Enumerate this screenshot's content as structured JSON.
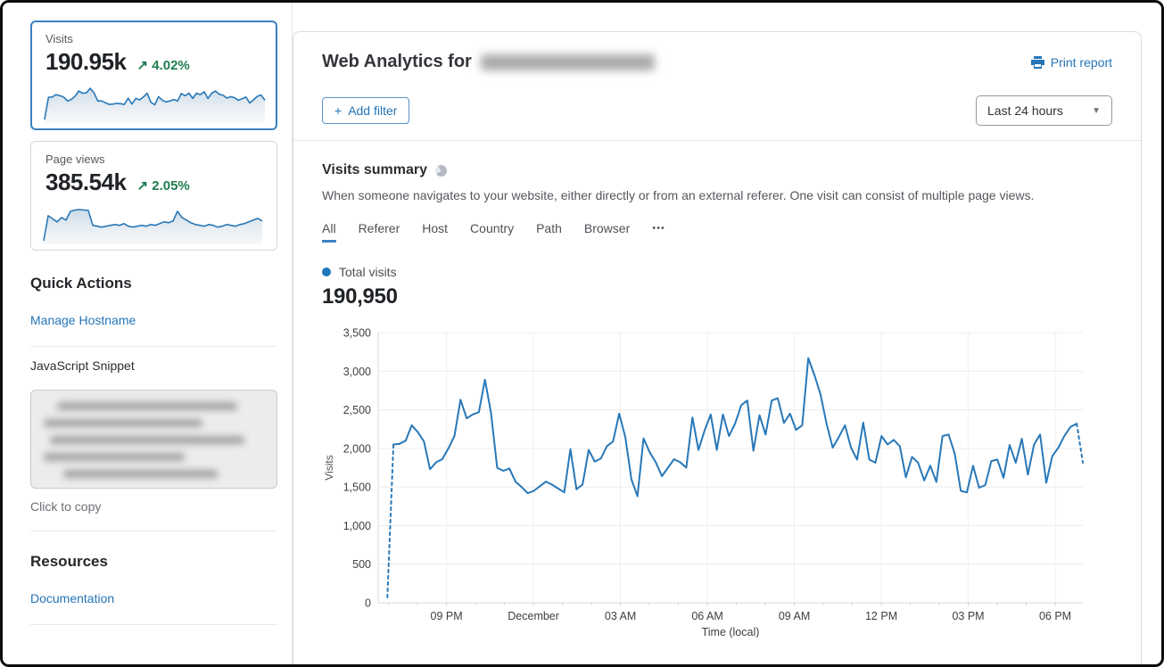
{
  "colors": {
    "accent": "#2575b7",
    "positive_green": "#1f7d4f",
    "chart_line": "#2878b8",
    "selected_card_border": "#3b7fc0"
  },
  "sidebar": {
    "cards": [
      {
        "label": "Visits",
        "value": "190.95k",
        "trend_arrow": "↗",
        "delta": "4.02%"
      },
      {
        "label": "Page views",
        "value": "385.54k",
        "trend_arrow": "↗",
        "delta": "2.05%"
      }
    ],
    "quick_actions": {
      "title": "Quick Actions",
      "manage_link": "Manage Hostname",
      "snippet_label": "JavaScript Snippet",
      "copy_hint": "Click to copy"
    },
    "resources": {
      "title": "Resources",
      "doc_link": "Documentation"
    }
  },
  "header": {
    "title_prefix": "Web Analytics for",
    "print_label": "Print report",
    "plus": "+",
    "add_filter": "Add filter",
    "time_range": "Last 24 hours",
    "caret": "▼"
  },
  "summary": {
    "title": "Visits summary",
    "description": "When someone navigates to your website, either directly or from an external referer. One visit can consist of multiple page views.",
    "tabs": [
      {
        "label": "All",
        "active": true
      },
      {
        "label": "Referer",
        "active": false
      },
      {
        "label": "Host",
        "active": false
      },
      {
        "label": "Country",
        "active": false
      },
      {
        "label": "Path",
        "active": false
      },
      {
        "label": "Browser",
        "active": false
      }
    ],
    "more_tabs": "•••",
    "legend_label": "Total visits",
    "total_value": "190,950"
  },
  "chart_data": [
    {
      "type": "line",
      "name": "visits-over-time",
      "title": "Total visits",
      "xlabel": "Time (local)",
      "ylabel": "Visits",
      "ylim": [
        0,
        3500
      ],
      "ytick_labels": [
        "0",
        "500",
        "1,000",
        "1,500",
        "2,000",
        "2,500",
        "3,000",
        "3,500"
      ],
      "xtick_labels": [
        "09 PM",
        "December",
        "03 AM",
        "06 AM",
        "09 AM",
        "12 PM",
        "03 PM",
        "06 PM"
      ],
      "grid": true,
      "line_color": "#2878b8",
      "dashed_first_segments": 1,
      "dashed_last_segments": 1,
      "series": [
        {
          "name": "Total visits",
          "values": [
            70,
            2050,
            2060,
            2100,
            2300,
            2210,
            2090,
            1730,
            1820,
            1860,
            2000,
            2160,
            2630,
            2390,
            2440,
            2470,
            2890,
            2460,
            1750,
            1710,
            1740,
            1570,
            1500,
            1420,
            1450,
            1510,
            1570,
            1530,
            1480,
            1430,
            1990,
            1470,
            1530,
            1980,
            1830,
            1870,
            2030,
            2090,
            2450,
            2150,
            1600,
            1380,
            2130,
            1950,
            1820,
            1640,
            1750,
            1860,
            1820,
            1750,
            2400,
            1980,
            2230,
            2440,
            1980,
            2440,
            2160,
            2320,
            2560,
            2620,
            1970,
            2430,
            2180,
            2620,
            2650,
            2330,
            2450,
            2240,
            2300,
            3170,
            2950,
            2700,
            2320,
            2010,
            2145,
            2300,
            2010,
            1855,
            2335,
            1855,
            1815,
            2160,
            2050,
            2110,
            2030,
            1625,
            1890,
            1815,
            1585,
            1775,
            1565,
            2160,
            2180,
            1930,
            1450,
            1430,
            1775,
            1490,
            1525,
            1835,
            1855,
            1620,
            2045,
            1815,
            2125,
            1660,
            2050,
            2180,
            1555,
            1900,
            2010,
            2165,
            2280,
            2320,
            1815
          ]
        }
      ]
    },
    {
      "type": "area",
      "name": "visits-sparkline",
      "normalized": true,
      "values": [
        2,
        65,
        66,
        73,
        70,
        66,
        55,
        59,
        68,
        83,
        77,
        78,
        91,
        78,
        55,
        55,
        50,
        45,
        46,
        48,
        47,
        45,
        63,
        46,
        62,
        58,
        66,
        77,
        51,
        44,
        67,
        57,
        52,
        55,
        59,
        55,
        76,
        70,
        77,
        62,
        77,
        73,
        81,
        62,
        77,
        83,
        74,
        71,
        63,
        67,
        64,
        57,
        61,
        66,
        49,
        58,
        68,
        72,
        57
      ]
    },
    {
      "type": "area",
      "name": "page-views-sparkline",
      "normalized": true,
      "values": [
        5,
        62,
        55,
        48,
        58,
        52,
        72,
        75,
        76,
        75,
        74,
        40,
        38,
        36,
        38,
        40,
        42,
        40,
        44,
        38,
        36,
        38,
        40,
        38,
        42,
        40,
        44,
        48,
        46,
        50,
        72,
        58,
        52,
        46,
        42,
        40,
        38,
        42,
        40,
        36,
        38,
        42,
        40,
        38,
        42,
        44,
        48,
        52,
        56,
        50
      ]
    }
  ]
}
